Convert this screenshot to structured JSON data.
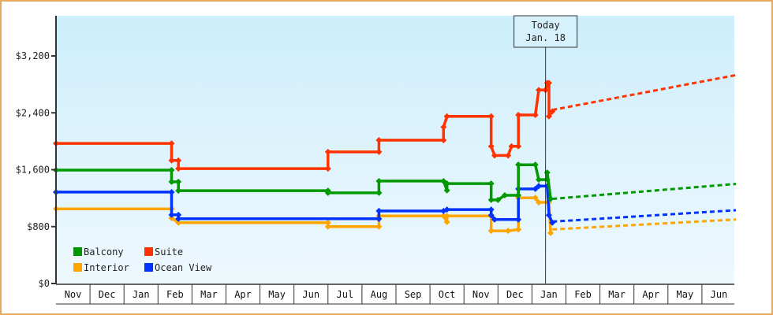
{
  "chart_data": {
    "type": "line",
    "title": "",
    "xlabel": "",
    "ylabel": "",
    "ylim": [
      0,
      3800
    ],
    "grid": false,
    "legend_position": "bottom-left inside plot",
    "y_ticks": [
      "$0",
      "$800",
      "$1,600",
      "$2,400",
      "$3,200"
    ],
    "y_tick_values": [
      0,
      800,
      1600,
      2400,
      3200
    ],
    "x_tick_labels": [
      "Nov",
      "Dec",
      "Jan",
      "Feb",
      "Mar",
      "Apr",
      "May",
      "Jun",
      "Jul",
      "Aug",
      "Sep",
      "Oct",
      "Nov",
      "Dec",
      "Jan",
      "Feb",
      "Mar",
      "Apr",
      "May",
      "Jun"
    ],
    "annotation": {
      "label_line1": "Today",
      "label_line2": "Jan. 18",
      "month_index": 14.4
    },
    "legend": [
      {
        "name": "Balcony",
        "color": "#009900"
      },
      {
        "name": "Suite",
        "color": "#ff3300"
      },
      {
        "name": "Interior",
        "color": "#ffa500"
      },
      {
        "name": "Ocean View",
        "color": "#0033ff"
      }
    ],
    "series": [
      {
        "name": "Suite",
        "color": "#ff3300",
        "historical": [
          [
            0.0,
            1970
          ],
          [
            3.4,
            1970
          ],
          [
            3.4,
            1730
          ],
          [
            3.6,
            1730
          ],
          [
            3.6,
            1615
          ],
          [
            8.0,
            1615
          ],
          [
            8.0,
            1850
          ],
          [
            9.5,
            1850
          ],
          [
            9.5,
            2015
          ],
          [
            11.4,
            2015
          ],
          [
            11.4,
            2200
          ],
          [
            11.5,
            2350
          ],
          [
            12.8,
            2350
          ],
          [
            12.8,
            1930
          ],
          [
            12.9,
            1800
          ],
          [
            13.3,
            1800
          ],
          [
            13.4,
            1930
          ],
          [
            13.6,
            1930
          ],
          [
            13.6,
            2370
          ],
          [
            14.1,
            2370
          ],
          [
            14.2,
            2720
          ],
          [
            14.4,
            2720
          ],
          [
            14.45,
            2820
          ],
          [
            14.5,
            2820
          ],
          [
            14.5,
            2350
          ],
          [
            14.6,
            2420
          ]
        ],
        "forecast": [
          [
            14.6,
            2440
          ],
          [
            20.0,
            2930
          ]
        ]
      },
      {
        "name": "Balcony",
        "color": "#009900",
        "historical": [
          [
            0.0,
            1595
          ],
          [
            3.4,
            1595
          ],
          [
            3.4,
            1430
          ],
          [
            3.6,
            1430
          ],
          [
            3.6,
            1305
          ],
          [
            8.0,
            1305
          ],
          [
            8.0,
            1275
          ],
          [
            9.5,
            1275
          ],
          [
            9.5,
            1440
          ],
          [
            11.4,
            1440
          ],
          [
            11.5,
            1310
          ],
          [
            11.5,
            1405
          ],
          [
            12.8,
            1405
          ],
          [
            12.8,
            1175
          ],
          [
            13.0,
            1175
          ],
          [
            13.2,
            1240
          ],
          [
            13.6,
            1240
          ],
          [
            13.6,
            1670
          ],
          [
            14.1,
            1670
          ],
          [
            14.2,
            1460
          ],
          [
            14.45,
            1460
          ],
          [
            14.45,
            1560
          ],
          [
            14.55,
            1190
          ]
        ],
        "forecast": [
          [
            14.6,
            1190
          ],
          [
            20.0,
            1400
          ]
        ]
      },
      {
        "name": "Ocean View",
        "color": "#0033ff",
        "historical": [
          [
            0.0,
            1285
          ],
          [
            3.4,
            1285
          ],
          [
            3.4,
            965
          ],
          [
            3.6,
            965
          ],
          [
            3.6,
            910
          ],
          [
            8.0,
            910
          ],
          [
            9.5,
            910
          ],
          [
            9.5,
            1020
          ],
          [
            11.4,
            1020
          ],
          [
            11.5,
            1040
          ],
          [
            12.8,
            1040
          ],
          [
            12.8,
            960
          ],
          [
            12.9,
            900
          ],
          [
            13.3,
            900
          ],
          [
            13.6,
            900
          ],
          [
            13.6,
            1330
          ],
          [
            14.1,
            1330
          ],
          [
            14.2,
            1370
          ],
          [
            14.45,
            1370
          ],
          [
            14.5,
            960
          ],
          [
            14.6,
            855
          ]
        ],
        "forecast": [
          [
            14.6,
            870
          ],
          [
            20.0,
            1030
          ]
        ]
      },
      {
        "name": "Interior",
        "color": "#ffa500",
        "historical": [
          [
            0.0,
            1050
          ],
          [
            3.4,
            1050
          ],
          [
            3.4,
            920
          ],
          [
            3.6,
            855
          ],
          [
            8.0,
            855
          ],
          [
            8.0,
            800
          ],
          [
            9.5,
            800
          ],
          [
            9.5,
            950
          ],
          [
            11.4,
            950
          ],
          [
            11.5,
            865
          ],
          [
            11.5,
            950
          ],
          [
            12.8,
            950
          ],
          [
            12.8,
            740
          ],
          [
            12.9,
            740
          ],
          [
            13.3,
            740
          ],
          [
            13.6,
            760
          ],
          [
            13.6,
            1205
          ],
          [
            14.1,
            1205
          ],
          [
            14.2,
            1140
          ],
          [
            14.5,
            1140
          ],
          [
            14.55,
            710
          ]
        ],
        "forecast": [
          [
            14.6,
            760
          ],
          [
            20.0,
            900
          ]
        ]
      }
    ]
  }
}
